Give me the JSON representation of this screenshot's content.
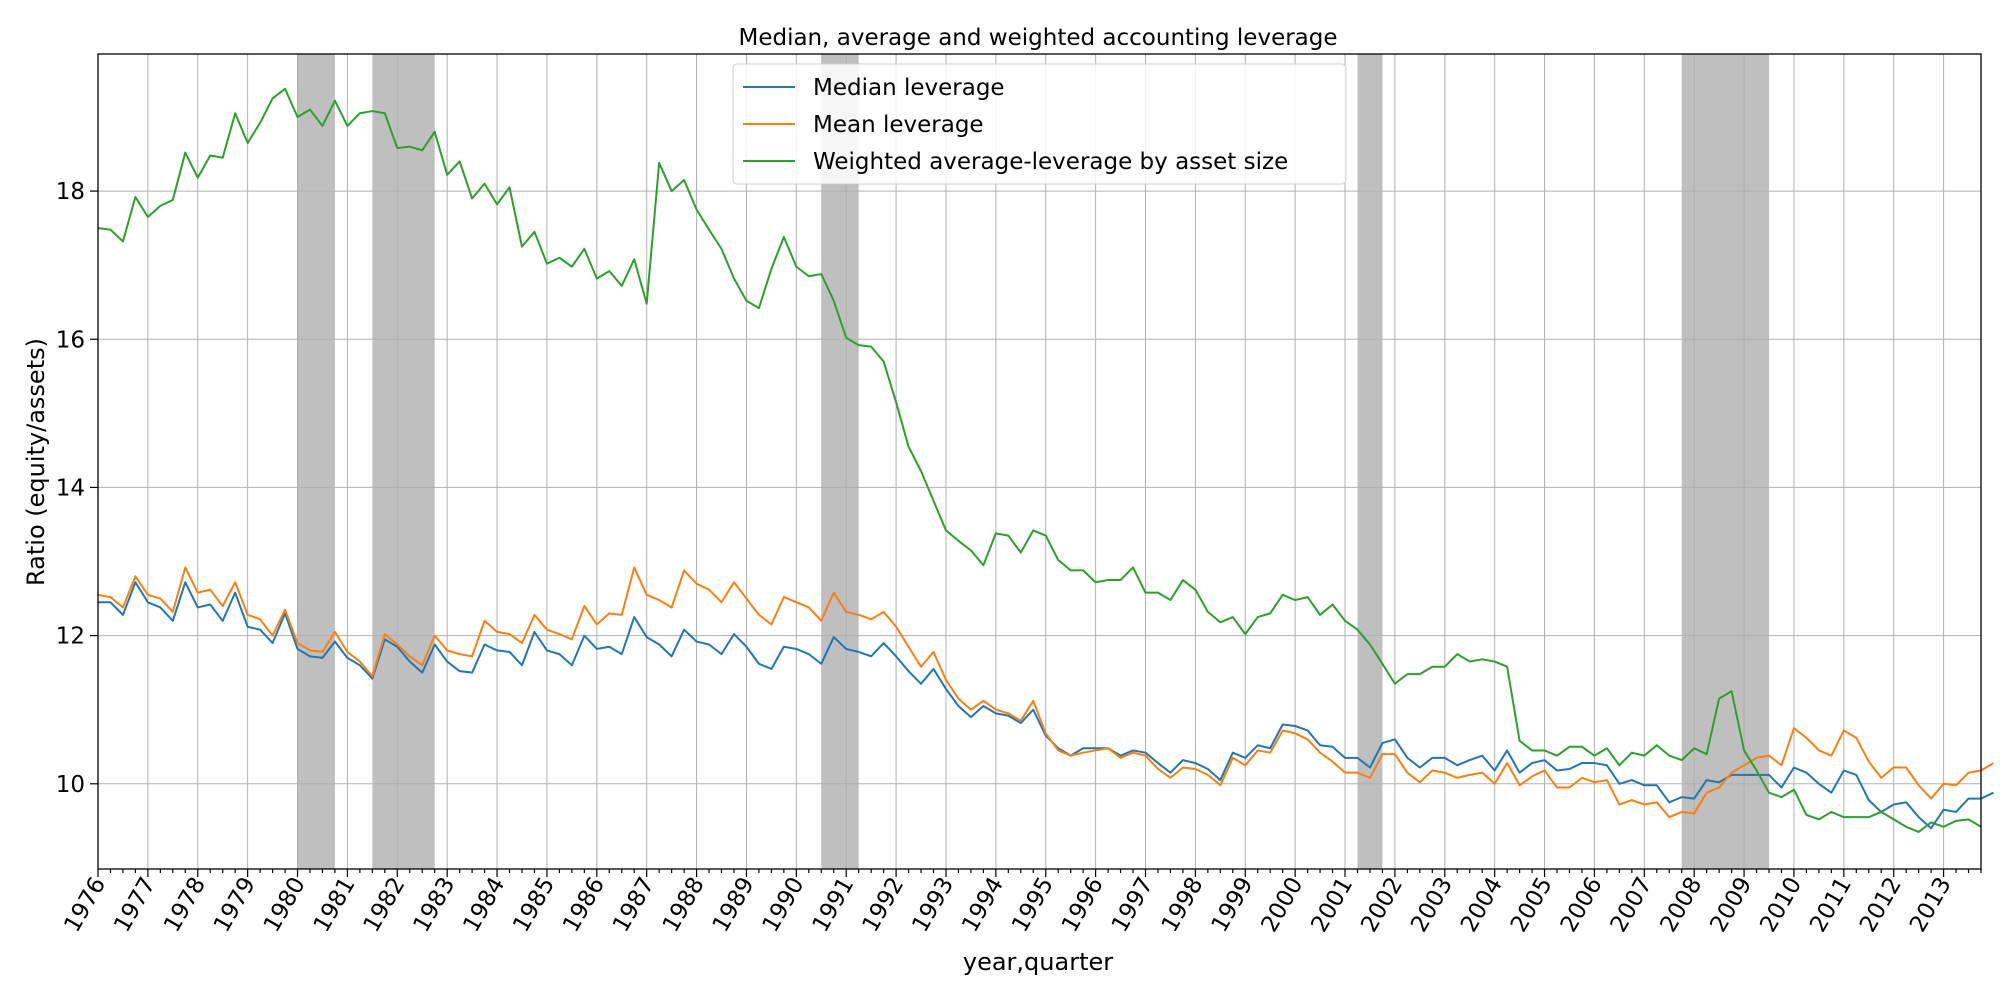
{
  "chart_data": {
    "type": "line",
    "title": "Median, average and weighted accounting leverage",
    "xlabel": "year,quarter",
    "ylabel": "Ratio (equity/assets)",
    "xlim": [
      1976.0,
      2013.75
    ],
    "ylim": [
      8.85,
      19.85
    ],
    "y_ticks": [
      10,
      12,
      14,
      16,
      18
    ],
    "x_ticks": [
      "1976",
      "1977",
      "1978",
      "1979",
      "1980",
      "1981",
      "1982",
      "1983",
      "1984",
      "1985",
      "1986",
      "1987",
      "1988",
      "1989",
      "1990",
      "1991",
      "1992",
      "1993",
      "1994",
      "1995",
      "1996",
      "1997",
      "1998",
      "1999",
      "2000",
      "2001",
      "2002",
      "2003",
      "2004",
      "2005",
      "2006",
      "2007",
      "2008",
      "2009",
      "2010",
      "2011",
      "2012",
      "2013"
    ],
    "grid": true,
    "legend_position": "top-center",
    "recessions": [
      [
        1980.0,
        1980.75
      ],
      [
        1981.5,
        1982.75
      ],
      [
        1990.5,
        1991.25
      ],
      [
        2001.25,
        2001.75
      ],
      [
        2007.75,
        2009.5
      ]
    ],
    "recession_color": "#bfbfbf",
    "series": [
      {
        "name": "Median leverage",
        "color": "#1f77b4",
        "x_start": 1976.0,
        "x_step": 0.25,
        "values": [
          12.45,
          12.45,
          12.28,
          12.72,
          12.45,
          12.38,
          12.2,
          12.72,
          12.38,
          12.42,
          12.2,
          12.58,
          12.12,
          12.08,
          11.9,
          12.3,
          11.82,
          11.72,
          11.7,
          11.92,
          11.7,
          11.6,
          11.42,
          11.95,
          11.85,
          11.65,
          11.5,
          11.88,
          11.65,
          11.52,
          11.5,
          11.88,
          11.8,
          11.78,
          11.6,
          12.05,
          11.8,
          11.75,
          11.6,
          12.0,
          11.82,
          11.85,
          11.75,
          12.25,
          11.98,
          11.88,
          11.72,
          12.08,
          11.92,
          11.88,
          11.75,
          12.02,
          11.85,
          11.62,
          11.55,
          11.85,
          11.82,
          11.75,
          11.62,
          11.98,
          11.82,
          11.78,
          11.72,
          11.9,
          11.72,
          11.52,
          11.35,
          11.55,
          11.28,
          11.05,
          10.9,
          11.05,
          10.95,
          10.92,
          10.82,
          11.0,
          10.65,
          10.48,
          10.38,
          10.48,
          10.48,
          10.48,
          10.38,
          10.45,
          10.42,
          10.28,
          10.15,
          10.32,
          10.28,
          10.2,
          10.05,
          10.42,
          10.35,
          10.52,
          10.48,
          10.8,
          10.78,
          10.72,
          10.52,
          10.5,
          10.35,
          10.35,
          10.22,
          10.55,
          10.6,
          10.35,
          10.22,
          10.35,
          10.35,
          10.25,
          10.32,
          10.38,
          10.18,
          10.45,
          10.15,
          10.28,
          10.32,
          10.18,
          10.2,
          10.28,
          10.28,
          10.25,
          10.0,
          10.05,
          9.98,
          9.98,
          9.75,
          9.82,
          9.8,
          10.05,
          10.02,
          10.12,
          10.12,
          10.12,
          10.12,
          9.95,
          10.22,
          10.15,
          10.0,
          9.88,
          10.18,
          10.12,
          9.78,
          9.62,
          9.72,
          9.75,
          9.55,
          9.4,
          9.65,
          9.62,
          9.8,
          9.8,
          9.88
        ]
      },
      {
        "name": "Mean leverage",
        "color": "#ff7f0e",
        "x_start": 1976.0,
        "x_step": 0.25,
        "values": [
          12.55,
          12.52,
          12.38,
          12.8,
          12.55,
          12.5,
          12.32,
          12.92,
          12.58,
          12.62,
          12.4,
          12.72,
          12.28,
          12.22,
          12.0,
          12.35,
          11.9,
          11.8,
          11.78,
          12.05,
          11.78,
          11.65,
          11.45,
          12.02,
          11.88,
          11.72,
          11.6,
          12.0,
          11.8,
          11.75,
          11.72,
          12.2,
          12.05,
          12.02,
          11.9,
          12.28,
          12.08,
          12.02,
          11.95,
          12.4,
          12.15,
          12.3,
          12.28,
          12.92,
          12.55,
          12.48,
          12.38,
          12.88,
          12.7,
          12.62,
          12.45,
          12.72,
          12.5,
          12.28,
          12.15,
          12.52,
          12.45,
          12.38,
          12.2,
          12.58,
          12.32,
          12.28,
          12.22,
          12.32,
          12.12,
          11.85,
          11.58,
          11.78,
          11.4,
          11.15,
          11.0,
          11.12,
          11.0,
          10.95,
          10.85,
          11.12,
          10.68,
          10.45,
          10.38,
          10.42,
          10.45,
          10.48,
          10.35,
          10.42,
          10.38,
          10.2,
          10.08,
          10.22,
          10.2,
          10.12,
          9.98,
          10.35,
          10.25,
          10.45,
          10.42,
          10.72,
          10.68,
          10.6,
          10.42,
          10.3,
          10.15,
          10.15,
          10.08,
          10.4,
          10.4,
          10.15,
          10.02,
          10.18,
          10.15,
          10.08,
          10.12,
          10.15,
          10.0,
          10.28,
          9.98,
          10.1,
          10.18,
          9.95,
          9.95,
          10.08,
          10.02,
          10.05,
          9.72,
          9.78,
          9.72,
          9.75,
          9.55,
          9.62,
          9.6,
          9.88,
          9.95,
          10.15,
          10.25,
          10.35,
          10.38,
          10.25,
          10.75,
          10.62,
          10.45,
          10.38,
          10.72,
          10.62,
          10.3,
          10.08,
          10.22,
          10.22,
          9.98,
          9.8,
          10.0,
          9.98,
          10.15,
          10.18,
          10.28
        ]
      },
      {
        "name": "Weighted average-leverage by asset size",
        "color": "#2ca02c",
        "x_start": 1976.0,
        "x_step": 0.25,
        "values": [
          17.5,
          17.48,
          17.32,
          17.92,
          17.65,
          17.8,
          17.88,
          18.52,
          18.18,
          18.48,
          18.45,
          19.05,
          18.65,
          18.92,
          19.25,
          19.38,
          19.0,
          19.1,
          18.88,
          19.22,
          18.88,
          19.05,
          19.08,
          19.05,
          18.58,
          18.6,
          18.55,
          18.8,
          18.22,
          18.4,
          17.9,
          18.1,
          17.82,
          18.05,
          17.25,
          17.45,
          17.02,
          17.1,
          16.98,
          17.22,
          16.82,
          16.92,
          16.72,
          17.08,
          16.48,
          18.38,
          18.0,
          18.15,
          17.75,
          17.48,
          17.22,
          16.82,
          16.52,
          16.42,
          16.95,
          17.38,
          16.98,
          16.85,
          16.88,
          16.52,
          16.02,
          15.92,
          15.9,
          15.7,
          15.15,
          14.55,
          14.22,
          13.82,
          13.42,
          13.28,
          13.15,
          12.95,
          13.38,
          13.35,
          13.12,
          13.42,
          13.35,
          13.02,
          12.88,
          12.88,
          12.72,
          12.75,
          12.75,
          12.92,
          12.58,
          12.58,
          12.48,
          12.75,
          12.62,
          12.32,
          12.18,
          12.25,
          12.02,
          12.25,
          12.3,
          12.55,
          12.48,
          12.52,
          12.28,
          12.42,
          12.2,
          12.08,
          11.88,
          11.62,
          11.35,
          11.48,
          11.48,
          11.58,
          11.58,
          11.75,
          11.65,
          11.68,
          11.65,
          11.58,
          10.58,
          10.45,
          10.45,
          10.38,
          10.5,
          10.5,
          10.38,
          10.48,
          10.25,
          10.42,
          10.38,
          10.52,
          10.38,
          10.32,
          10.48,
          10.4,
          11.15,
          11.25,
          10.45,
          10.18,
          9.88,
          9.82,
          9.92,
          9.58,
          9.52,
          9.62,
          9.55,
          9.55,
          9.55,
          9.62,
          9.52,
          9.42,
          9.35,
          9.48,
          9.42,
          9.5,
          9.52,
          9.42
        ]
      }
    ]
  }
}
